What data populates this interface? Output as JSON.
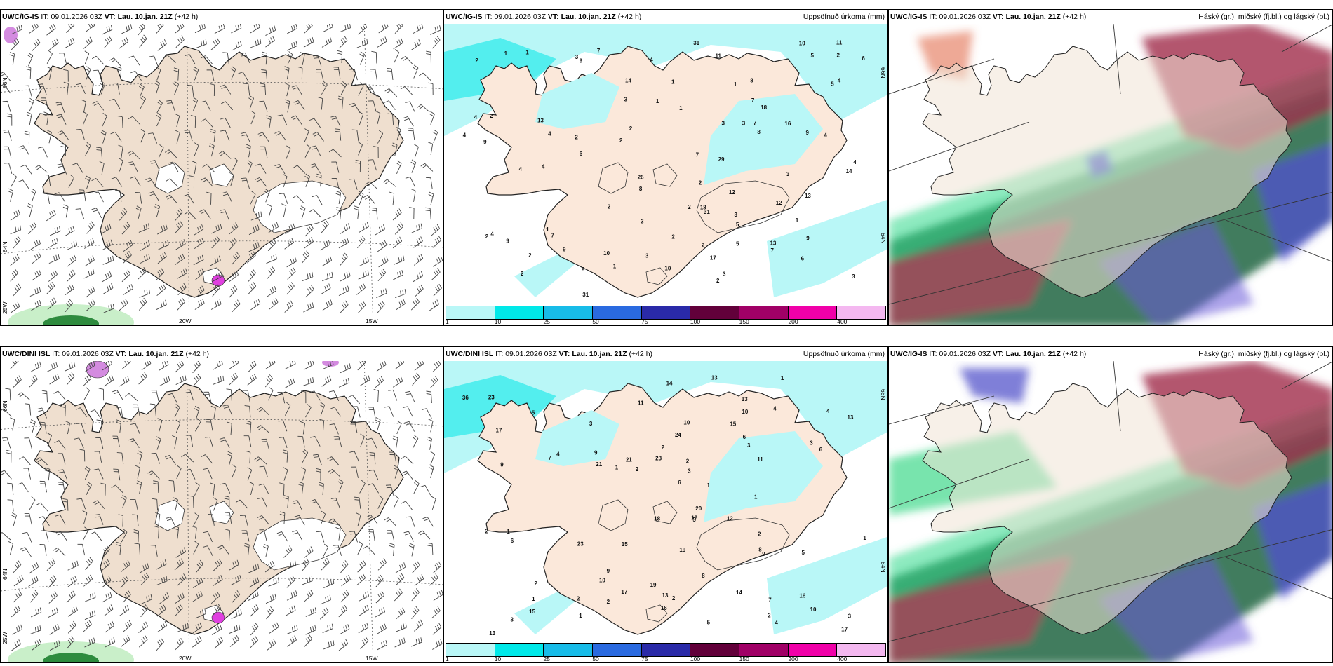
{
  "panels": [
    {
      "id": "p1",
      "model": "UWC/IG-IS",
      "it_label": "IT:",
      "it_value": "09.01.2026 03Z",
      "vt_label": "VT:",
      "vt_value": "Lau. 10.jan. 21Z",
      "lead": "(+42 h)",
      "product": "",
      "lon_labels": [
        "20W",
        "15W"
      ],
      "lat_labels": [
        "66N",
        "64N",
        "25W"
      ],
      "right_lat_labels": []
    },
    {
      "id": "p2",
      "model": "UWC/IG-IS",
      "it_label": "IT:",
      "it_value": "09.01.2026 03Z",
      "vt_label": "VT:",
      "vt_value": "Lau. 10.jan. 21Z",
      "lead": "(+42 h)",
      "product": "Uppsöfnuð úrkoma (mm)",
      "lon_labels": [],
      "lat_labels": [],
      "right_lat_labels": [
        "66N",
        "64N"
      ]
    },
    {
      "id": "p3",
      "model": "UWC/IG-IS",
      "it_label": "IT:",
      "it_value": "09.01.2026 03Z",
      "vt_label": "VT:",
      "vt_value": "Lau. 10.jan. 21Z",
      "lead": "(+42 h)",
      "product": "Háský (gr.), miðský (fj.bl.) og lágský (bl.)",
      "lon_labels": [],
      "lat_labels": [],
      "right_lat_labels": []
    },
    {
      "id": "p4",
      "model": "UWC/DINI ISL",
      "it_label": "IT:",
      "it_value": "09.01.2026 03Z",
      "vt_label": "VT:",
      "vt_value": "Lau. 10.jan. 21Z",
      "lead": "(+42 h)",
      "product": "",
      "lon_labels": [
        "20W",
        "15W"
      ],
      "lat_labels": [
        "66N",
        "64N",
        "25W"
      ],
      "right_lat_labels": []
    },
    {
      "id": "p5",
      "model": "UWC/DINI ISL",
      "it_label": "IT:",
      "it_value": "09.01.2026 03Z",
      "vt_label": "VT:",
      "vt_value": "Lau. 10.jan. 21Z",
      "lead": "(+42 h)",
      "product": "Uppsöfnuð úrkoma (mm)",
      "lon_labels": [],
      "lat_labels": [],
      "right_lat_labels": [
        "66N",
        "64N"
      ]
    },
    {
      "id": "p6",
      "model": "UWC/IG-IS",
      "it_label": "IT:",
      "it_value": "09.01.2026 03Z",
      "vt_label": "VT:",
      "vt_value": "Lau. 10.jan. 21Z",
      "lead": "(+42 h)",
      "product": "Háský (gr.), miðský (fj.bl.) og lágský (bl.)",
      "lon_labels": [],
      "lat_labels": [],
      "right_lat_labels": []
    }
  ],
  "precip_legend": {
    "labels": [
      "1",
      "10",
      "25",
      "50",
      "75",
      "100",
      "150",
      "200",
      "400"
    ],
    "colors": [
      "#b9f7f7",
      "#00e8e8",
      "#18bce8",
      "#2a6ae0",
      "#2a2aa8",
      "#62003a",
      "#a00066",
      "#f000a8",
      "#f4b8f0"
    ]
  },
  "precip_values": {
    "p2": [
      "3",
      "9",
      "7",
      "13",
      "16",
      "17",
      "14",
      "6",
      "8",
      "9",
      "9",
      "4",
      "26",
      "18",
      "8",
      "10",
      "9",
      "5",
      "12",
      "9",
      "13",
      "31",
      "9",
      "7",
      "29",
      "18",
      "4",
      "4",
      "10",
      "14",
      "5",
      "11",
      "8",
      "10",
      "7",
      "3",
      "31",
      "2",
      "4",
      "3",
      "4",
      "7",
      "6",
      "9",
      "11",
      "13",
      "2",
      "3",
      "2",
      "2",
      "2",
      "1",
      "2",
      "7",
      "2",
      "3",
      "6",
      "2",
      "31",
      "2",
      "4",
      "2",
      "7",
      "4",
      "3",
      "2",
      "1",
      "2",
      "5",
      "2",
      "4",
      "3",
      "2",
      "1",
      "1",
      "1",
      "3",
      "1",
      "3",
      "4",
      "1",
      "1",
      "1",
      "2",
      "3",
      "4",
      "12",
      "5"
    ],
    "p5": [
      "3",
      "5",
      "20",
      "19",
      "11",
      "13",
      "16",
      "13",
      "7",
      "10",
      "17",
      "21",
      "17",
      "14",
      "14",
      "9",
      "8",
      "6",
      "18",
      "13",
      "36",
      "15",
      "16",
      "12",
      "9",
      "10",
      "21",
      "24",
      "6",
      "8",
      "10",
      "15",
      "10",
      "13",
      "17",
      "5",
      "13",
      "11",
      "9",
      "19",
      "7",
      "9",
      "3",
      "2",
      "1",
      "1",
      "2",
      "2",
      "1",
      "3",
      "17",
      "23",
      "23",
      "2",
      "2",
      "5",
      "3",
      "2",
      "1",
      "2",
      "3",
      "6",
      "3",
      "4",
      "4",
      "1",
      "1",
      "1",
      "1",
      "2",
      "4",
      "5",
      "6",
      "23",
      "2",
      "2",
      "15",
      "4"
    ]
  }
}
